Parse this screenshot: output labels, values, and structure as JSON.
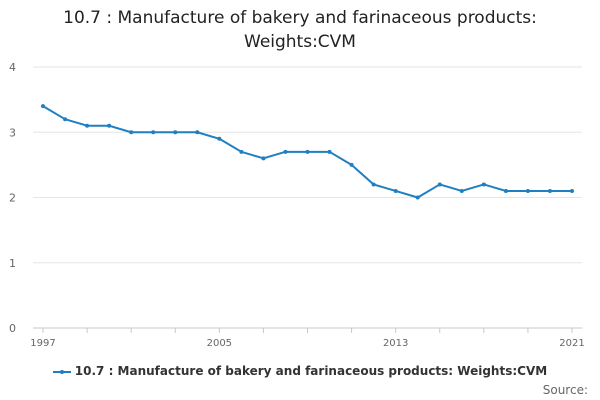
{
  "title_line1": "10.7 : Manufacture of bakery and farinaceous products:",
  "title_line2": "Weights:CVM",
  "source_label": "Source:",
  "colors": {
    "series": "#1f7fc1",
    "grid": "#e6e6e6",
    "axis": "#c8c8c8",
    "text": "#666666"
  },
  "chart_data": {
    "type": "line",
    "x": [
      1997,
      1998,
      1999,
      2000,
      2001,
      2002,
      2003,
      2004,
      2005,
      2006,
      2007,
      2008,
      2009,
      2010,
      2011,
      2012,
      2013,
      2014,
      2015,
      2016,
      2017,
      2018,
      2019,
      2020,
      2021
    ],
    "series": [
      {
        "name": "10.7 : Manufacture of bakery and farinaceous products: Weights:CVM",
        "values": [
          3.4,
          3.2,
          3.1,
          3.1,
          3.0,
          3.0,
          3.0,
          3.0,
          2.9,
          2.7,
          2.6,
          2.7,
          2.7,
          2.7,
          2.5,
          2.2,
          2.1,
          2.0,
          2.2,
          2.1,
          2.2,
          2.1,
          2.1,
          2.1,
          2.1
        ]
      }
    ],
    "x_tick_labels": [
      "1997",
      "2005",
      "2013",
      "2021"
    ],
    "x_tick_values": [
      1997,
      2005,
      2013,
      2021
    ],
    "y_ticks": [
      0,
      1,
      2,
      3,
      4
    ],
    "ylim": [
      0,
      4
    ],
    "xlim": [
      1997,
      2021
    ],
    "grid": true,
    "legend_position": "bottom"
  }
}
